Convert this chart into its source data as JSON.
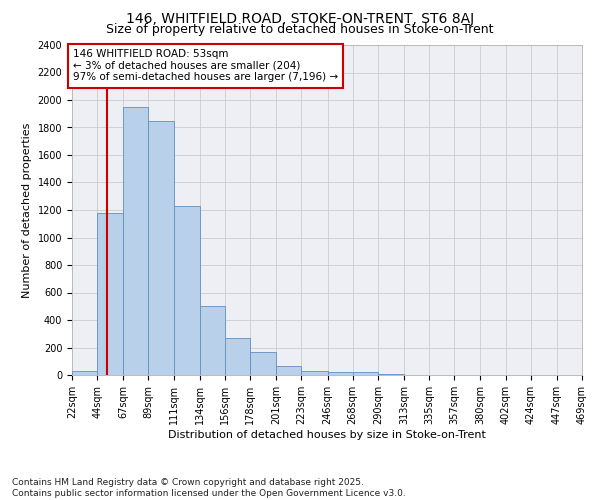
{
  "title": "146, WHITFIELD ROAD, STOKE-ON-TRENT, ST6 8AJ",
  "subtitle": "Size of property relative to detached houses in Stoke-on-Trent",
  "xlabel": "Distribution of detached houses by size in Stoke-on-Trent",
  "ylabel": "Number of detached properties",
  "footnote1": "Contains HM Land Registry data © Crown copyright and database right 2025.",
  "footnote2": "Contains public sector information licensed under the Open Government Licence v3.0.",
  "annotation_line1": "146 WHITFIELD ROAD: 53sqm",
  "annotation_line2": "← 3% of detached houses are smaller (204)",
  "annotation_line3": "97% of semi-detached houses are larger (7,196) →",
  "property_size": 53,
  "bin_edges": [
    22,
    44,
    67,
    89,
    111,
    134,
    156,
    178,
    201,
    223,
    246,
    268,
    290,
    313,
    335,
    357,
    380,
    402,
    424,
    447,
    469
  ],
  "bar_heights": [
    30,
    1180,
    1950,
    1850,
    1230,
    500,
    270,
    165,
    65,
    30,
    25,
    25,
    5,
    2,
    1,
    1,
    0,
    0,
    0,
    0
  ],
  "bar_color": "#b8d0ea",
  "bar_edge_color": "#6090c0",
  "vline_color": "#cc0000",
  "annotation_box_color": "#cc0000",
  "ylim": [
    0,
    2400
  ],
  "yticks": [
    0,
    200,
    400,
    600,
    800,
    1000,
    1200,
    1400,
    1600,
    1800,
    2000,
    2200,
    2400
  ],
  "grid_color": "#cccccc",
  "bg_color": "#eeeef5",
  "title_fontsize": 10,
  "subtitle_fontsize": 9,
  "axis_label_fontsize": 8,
  "tick_fontsize": 7,
  "footnote_fontsize": 6.5,
  "annotation_fontsize": 7.5
}
